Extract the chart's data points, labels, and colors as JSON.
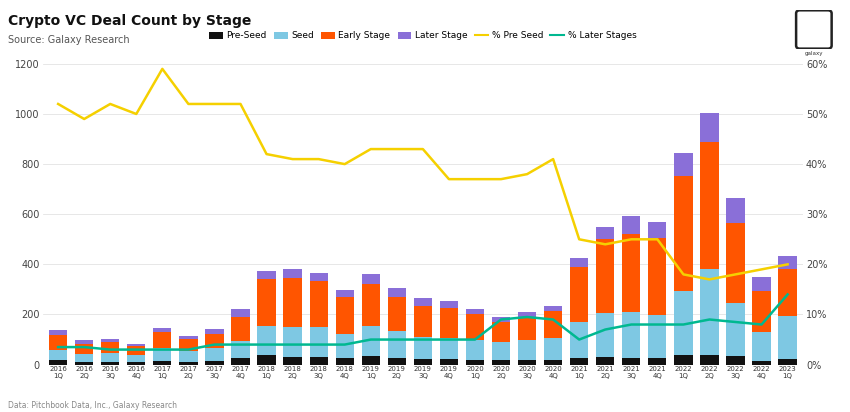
{
  "title": "Crypto VC Deal Count by Stage",
  "subtitle": "Source: Galaxy Research",
  "footnote": "Data: Pitchbook Data, Inc., Galaxy Research",
  "categories": [
    "2016\n1Q",
    "2016\n2Q",
    "2016\n3Q",
    "2016\n4Q",
    "2017\n1Q",
    "2017\n2Q",
    "2017\n3Q",
    "2017\n4Q",
    "2018\n1Q",
    "2018\n2Q",
    "2018\n3Q",
    "2018\n4Q",
    "2019\n1Q",
    "2019\n2Q",
    "2019\n3Q",
    "2019\n4Q",
    "2020\n1Q",
    "2020\n2Q",
    "2020\n3Q",
    "2020\n4Q",
    "2021\n1Q",
    "2021\n2Q",
    "2021\n3Q",
    "2021\n4Q",
    "2022\n1Q",
    "2022\n2Q",
    "2022\n3Q",
    "2022\n4Q",
    "2023\n1Q"
  ],
  "pre_seed": [
    18,
    12,
    12,
    10,
    15,
    12,
    15,
    25,
    40,
    32,
    30,
    28,
    35,
    28,
    22,
    22,
    20,
    18,
    18,
    18,
    25,
    30,
    28,
    28,
    38,
    40,
    35,
    15,
    22
  ],
  "seed": [
    42,
    32,
    35,
    28,
    50,
    42,
    50,
    70,
    115,
    120,
    120,
    95,
    120,
    105,
    90,
    85,
    78,
    72,
    80,
    90,
    145,
    175,
    180,
    168,
    255,
    340,
    210,
    115,
    170
  ],
  "early_stage": [
    60,
    40,
    42,
    35,
    65,
    50,
    58,
    95,
    185,
    195,
    185,
    145,
    165,
    138,
    120,
    118,
    105,
    82,
    88,
    105,
    220,
    295,
    315,
    310,
    460,
    510,
    320,
    165,
    190
  ],
  "later_stage": [
    18,
    14,
    12,
    10,
    15,
    12,
    18,
    30,
    35,
    35,
    32,
    28,
    40,
    35,
    32,
    28,
    18,
    17,
    22,
    22,
    35,
    50,
    68,
    62,
    90,
    115,
    100,
    55,
    50
  ],
  "pct_pre_seed": [
    52,
    49,
    52,
    50,
    59,
    52,
    52,
    52,
    42,
    41,
    41,
    40,
    43,
    43,
    43,
    37,
    37,
    37,
    38,
    41,
    25,
    24,
    25,
    25,
    18,
    17,
    18,
    19,
    20
  ],
  "pct_later_stages": [
    3.5,
    3.5,
    3,
    3,
    3,
    3,
    4,
    4,
    4,
    4,
    4,
    4,
    5,
    5,
    5,
    5,
    5,
    9,
    9.5,
    9,
    5,
    7,
    8,
    8,
    8,
    9,
    8.5,
    8,
    14
  ],
  "colors": {
    "pre_seed": "#111111",
    "seed": "#7EC8E3",
    "early_stage": "#FF5500",
    "later_stage": "#8A6FD8",
    "pct_pre_seed": "#F5D000",
    "pct_later_stages": "#00B890"
  },
  "ylim_left": [
    0,
    1200
  ],
  "ylim_right": [
    0,
    60
  ],
  "yticks_left": [
    0,
    200,
    400,
    600,
    800,
    1000,
    1200
  ],
  "yticks_right": [
    0,
    10,
    20,
    30,
    40,
    50,
    60
  ],
  "bg_color": "#FFFFFF",
  "grid_color": "#DDDDDD"
}
